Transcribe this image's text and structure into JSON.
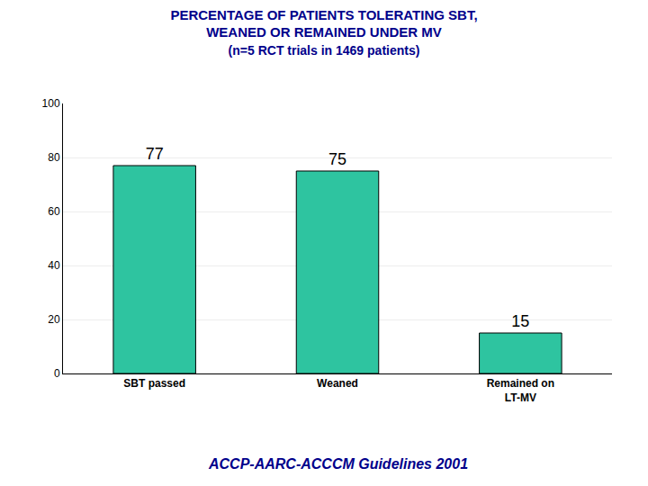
{
  "chart_data": {
    "type": "bar",
    "title": "PERCENTAGE OF PATIENTS TOLERATING SBT,\nWEANED OR REMAINED UNDER MV",
    "subtitle": "(n=5 RCT trials in 1469 patients)",
    "annotations": [
      "ACCP-AARC-ACCCM Guidelines 2001"
    ],
    "categories": [
      "SBT passed",
      "Weaned",
      "Remained on\nLT-MV"
    ],
    "values": [
      77,
      75,
      15
    ],
    "color": "#2EC4A0",
    "ylim": [
      0,
      100
    ],
    "yticks": [
      0,
      20,
      40,
      60,
      80,
      100
    ],
    "grid": true,
    "data_labels": true
  }
}
